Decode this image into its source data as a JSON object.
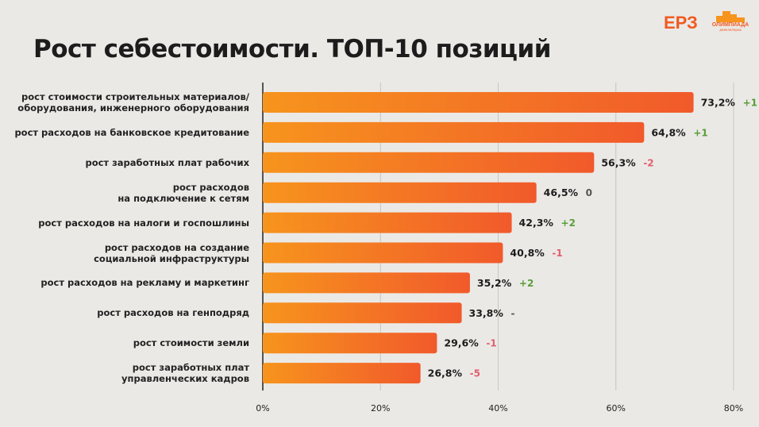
{
  "title": "Рост себестоимости. ТОП-10 позиций",
  "logos": {
    "erz": "ЕРЗ",
    "olymp_name": "ОЛИМПИАДА",
    "olymp_sub": "девелоперов"
  },
  "colors": {
    "bar_start": "#f7941d",
    "bar_end": "#f15a2b",
    "positive": "#5a9e3a",
    "negative": "#e0606e",
    "neutral": "#555555"
  },
  "chart_data": {
    "type": "bar",
    "orientation": "horizontal",
    "title": "Рост себестоимости. ТОП-10 позиций",
    "categories": [
      "рост стоимости строительных материалов/\nоборудования, инженерного оборудования",
      "рост расходов на банковское кредитование",
      "рост  заработных плат рабочих",
      "рост расходов\nна подключение к сетям",
      "рост расходов на налоги и госпошлины",
      "рост расходов на  создание\nсоциальной инфраструктуры",
      "рост расходов на рекламу и маркетинг",
      "рост расходов на генподряд",
      "рост стоимости земли",
      "рост  заработных плат\nуправленческих кадров"
    ],
    "values": [
      73.2,
      64.8,
      56.3,
      46.5,
      42.3,
      40.8,
      35.2,
      33.8,
      29.6,
      26.8
    ],
    "value_labels": [
      "73,2%",
      "64,8%",
      "56,3%",
      "46,5%",
      "42,3%",
      "40,8%",
      "35,2%",
      "33,8%",
      "29,6%",
      "26,8%"
    ],
    "rank_changes": [
      "+1",
      "+1",
      "-2",
      "0",
      "+2",
      "-1",
      "+2",
      "-",
      "-1",
      "-5"
    ],
    "xlim": [
      0,
      80
    ],
    "xticks": [
      "0%",
      "20%",
      "40%",
      "60%",
      "80%"
    ],
    "grid": true
  }
}
